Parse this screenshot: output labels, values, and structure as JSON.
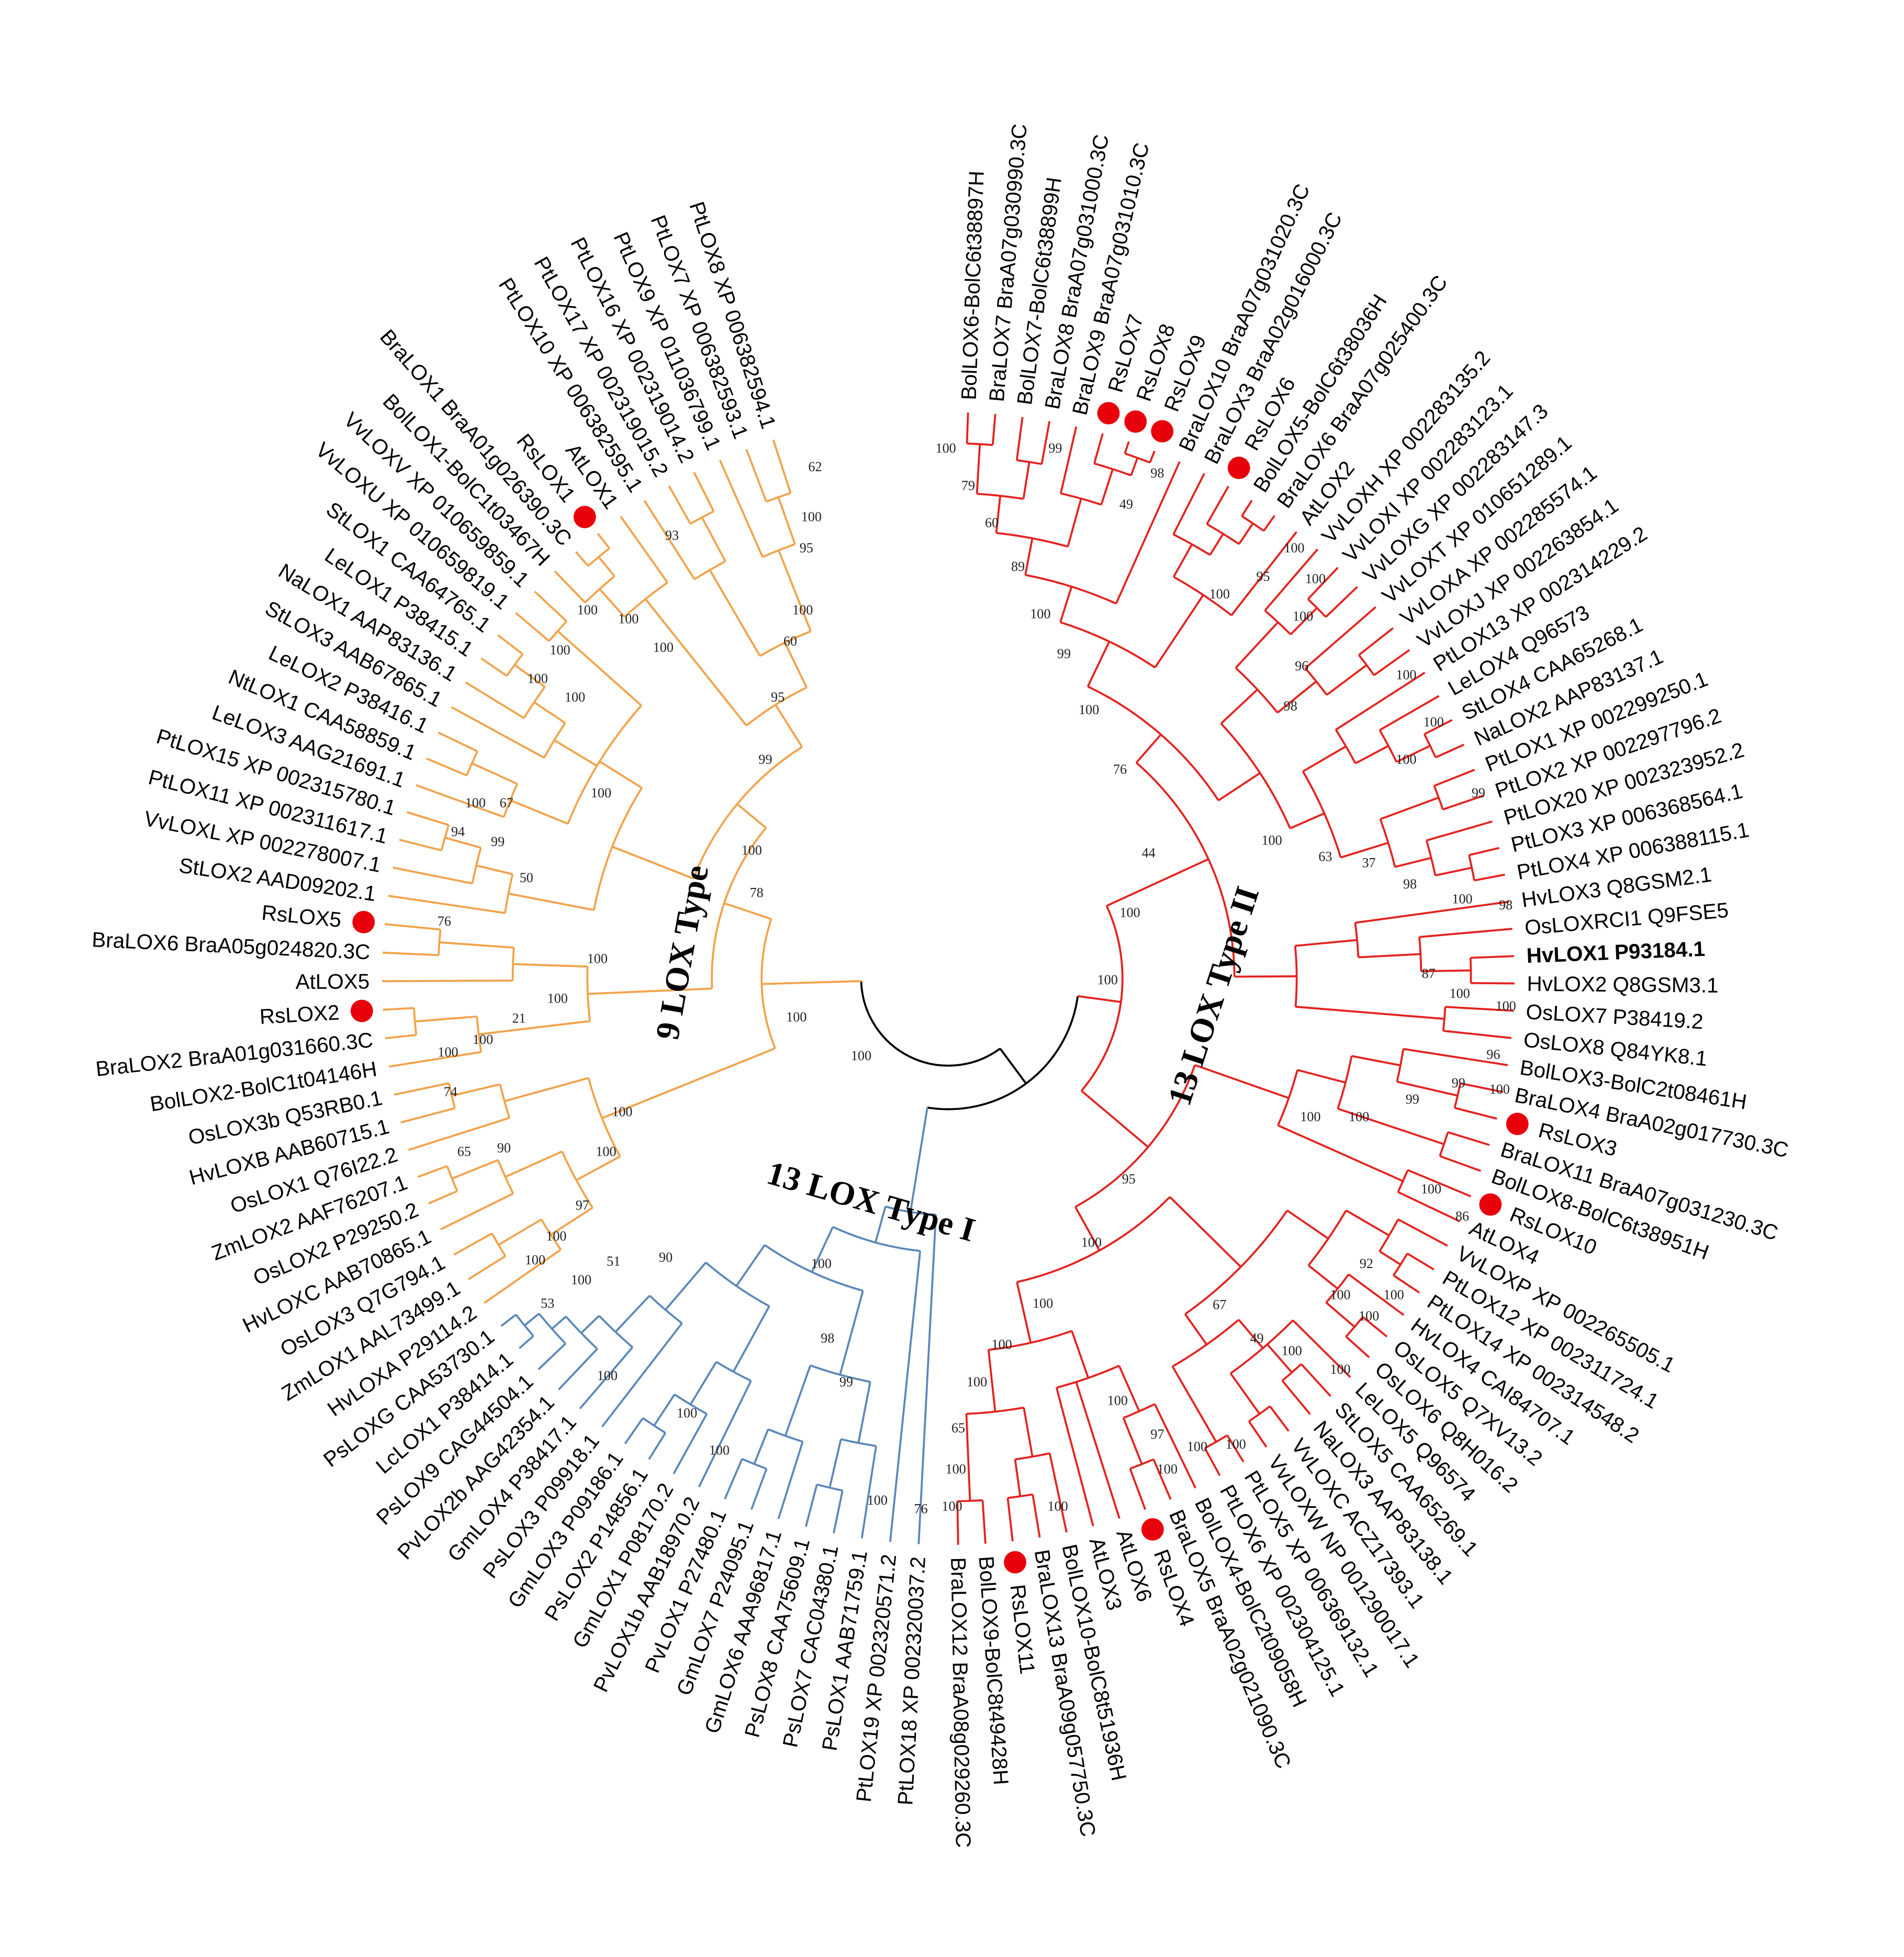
{
  "clade_labels": [
    "9 LOX Type",
    "13 LOX Type I",
    "13 LOX Type II"
  ],
  "leaves": [
    "BolLOX6-BolC6t38897H",
    "BraLOX7 BraA07g030990.3C",
    "BolLOX7-BolC6t38899H",
    "BraLOX8 BraA07g031000.3C",
    "BraLOX9 BraA07g031010.3C",
    "RsLOX7",
    "RsLOX8",
    "RsLOX9",
    "BraLOX10 BraA07g031020.3C",
    "BraLOX3 BraA02g016000.3C",
    "RsLOX6",
    "BolLOX5-BolC6t38036H",
    "BraLOX6 BraA07g025400.3C",
    "AtLOX2",
    "VvLOXH XP 002283135.2",
    "VvLOXI XP 002283123.1",
    "VvLOXG XP 002283147.3",
    "VvLOXT XP 010651289.1",
    "VvLOXA XP 002285574.1",
    "VvLOXJ XP 002263854.1",
    "PtLOX13 XP 002314229.2",
    "LeLOX4 Q96573",
    "StLOX4 CAA65268.1",
    "NaLOX2 AAP83137.1",
    "PtLOX1 XP 002299250.1",
    "PtLOX2 XP 002297796.2",
    "PtLOX20 XP 002323952.2",
    "PtLOX3 XP 006368564.1",
    "PtLOX4 XP 006388115.1",
    "HvLOX3 Q8GSM2.1",
    "OsLOXRCI1 Q9FSE5",
    "HvLOX1 P93184.1",
    "HvLOX2 Q8GSM3.1",
    "OsLOX7 P38419.2",
    "OsLOX8 Q84YK8.1",
    "BolLOX3-BolC2t08461H",
    "BraLOX4 BraA02g017730.3C",
    "RsLOX3",
    "BraLOX11 BraA07g031230.3C",
    "BolLOX8-BolC6t38951H",
    "RsLOX10",
    "AtLOX4",
    "VvLOXP XP 002265505.1",
    "PtLOX12 XP 002311724.1",
    "PtLOX14 XP 002314548.2",
    "HvLOX4 CAI84707.1",
    "OsLOX5 Q7XV13.2",
    "OsLOX6 Q8H016.2",
    "LeLOX5 Q96574",
    "StLOX5 CAA65269.1",
    "NaLOX3 AAP83138.1",
    "VvLOXC ACZ17393.1",
    "VvLOXW NP 001290017.1",
    "PtLOX5 XP 006369132.1",
    "PtLOX6 XP 002304125.1",
    "BolLOX4-BolC2t09058H",
    "BraLOX5 BraA02g021090.3C",
    "RsLOX4",
    "AtLOX6",
    "AtLOX3",
    "BolLOX10-BolC8t51936H",
    "BraLOX13 BraA09g057750.3C",
    "RsLOX11",
    "BolLOX9-BolC8t49428H",
    "BraLOX12 BraA08g029260.3C",
    "PtLOX18 XP 002320037.2",
    "PtLOX19 XP 002320571.2",
    "PsLOX1 AAB71759.1",
    "PsLOX7 CAC04380.1",
    "PsLOX8 CAA75609.1",
    "GmLOX6 AAA96817.1",
    "GmLOX7 P24095.1",
    "PvLOX1 P27480.1",
    "PvLOX1b AAB18970.2",
    "GmLOX1 P08170.2",
    "PsLOX2 P14856.1",
    "GmLOX3 P09186.1",
    "PsLOX3 P09918.1",
    "GmLOX4 P38417.1",
    "PvLOX2b AAG42354.1",
    "PsLOX9 CAG44504.1",
    "LcLOX1 P38414.1",
    "PsLOXG CAA53730.1",
    "HvLOXA P29114.2",
    "ZmLOX1 AAL73499.1",
    "OsLOX3 Q7G794.1",
    "HvLOXC AAB70865.1",
    "OsLOX2 P29250.2",
    "ZmLOX2 AAF76207.1",
    "OsLOX1 Q76I22.2",
    "HvLOXB AAB60715.1",
    "OsLOX3b Q53RB0.1",
    "BolLOX2-BolC1t04146H",
    "BraLOX2 BraA01g031660.3C",
    "RsLOX2",
    "AtLOX5",
    "BraLOX6 BraA05g024820.3C",
    "RsLOX5",
    "StLOX2 AAD09202.1",
    "VvLOXL XP 002278007.1",
    "PtLOX11 XP 002311617.1",
    "PtLOX15 XP 002315780.1",
    "LeLOX3 AAG21691.1",
    "NtLOX1 CAA58859.1",
    "LeLOX2 P38416.1",
    "StLOX3 AAB67865.1",
    "NaLOX1 AAP83136.1",
    "LeLOX1 P38415.1",
    "StLOX1 CAA64765.1",
    "VvLOXU XP 010659819.1",
    "VvLOXV XP 010659859.1",
    "BolLOX1-BolC1t03467H",
    "BraLOX1 BraA01g026390.3C",
    "RsLOX1",
    "AtLOX1",
    "PtLOX10 XP 006382595.1",
    "PtLOX17 XP 002319015.2",
    "PtLOX16 XP 002319014.2",
    "PtLOX9 XP 011036799.1",
    "PtLOX7 XP 006382593.1",
    "PtLOX8 XP 006382594.1"
  ],
  "bootstrap": [
    62,
    100,
    95,
    93,
    100,
    60,
    100,
    100,
    100,
    100,
    100,
    100,
    95,
    99,
    100,
    100,
    67,
    94,
    99,
    50,
    100,
    78,
    76,
    100,
    100,
    21,
    100,
    100,
    74,
    100,
    100,
    65,
    90,
    97,
    100,
    100,
    100,
    100,
    90,
    51,
    100,
    53,
    100,
    98,
    100,
    99,
    100,
    100,
    100,
    76,
    100,
    79,
    60,
    99,
    49,
    98,
    89,
    100,
    99,
    100,
    76,
    44,
    100,
    100,
    100,
    95,
    100,
    100,
    100,
    96,
    98,
    100,
    100,
    100,
    100,
    63,
    37,
    99,
    98,
    100,
    98,
    87,
    100,
    100,
    96,
    99,
    100,
    100,
    100,
    99,
    95,
    100,
    86,
    100,
    92,
    100,
    100,
    100,
    100,
    100,
    67,
    49,
    100,
    100,
    100,
    100,
    97,
    100,
    65,
    100,
    100,
    100,
    100,
    100
  ]
}
